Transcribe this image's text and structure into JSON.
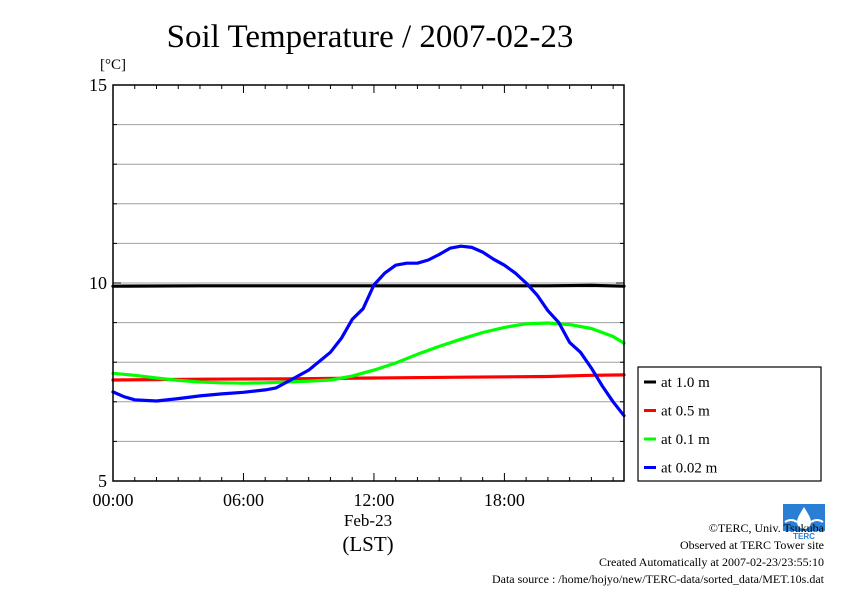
{
  "chart_data": {
    "type": "line",
    "title": "Soil Temperature / 2007-02-23",
    "ylabel": "[°C]",
    "xlabel": "(LST)",
    "x_date_label": "Feb-23",
    "ylim": [
      5,
      15
    ],
    "xlim": [
      0,
      23.5
    ],
    "y_ticks": [
      "5",
      "10",
      "15"
    ],
    "x_ticks": [
      {
        "value": 0,
        "label": "00:00"
      },
      {
        "value": 6,
        "label": "06:00"
      },
      {
        "value": 12,
        "label": "12:00"
      },
      {
        "value": 18,
        "label": "18:00"
      }
    ],
    "grid": true,
    "legend_position": "right",
    "series": [
      {
        "name": "at 1.0 m",
        "color": "#000000",
        "points": [
          [
            0,
            9.92
          ],
          [
            4,
            9.93
          ],
          [
            8,
            9.93
          ],
          [
            12,
            9.93
          ],
          [
            16,
            9.93
          ],
          [
            20,
            9.93
          ],
          [
            22,
            9.94
          ],
          [
            23.5,
            9.92
          ]
        ]
      },
      {
        "name": "at 0.5 m",
        "color": "#ff0000",
        "points": [
          [
            0,
            7.55
          ],
          [
            4,
            7.57
          ],
          [
            8,
            7.58
          ],
          [
            12,
            7.6
          ],
          [
            16,
            7.62
          ],
          [
            20,
            7.64
          ],
          [
            22,
            7.67
          ],
          [
            23.5,
            7.68
          ]
        ]
      },
      {
        "name": "at 0.1 m",
        "color": "#00ff00",
        "points": [
          [
            0,
            7.72
          ],
          [
            1,
            7.67
          ],
          [
            2,
            7.6
          ],
          [
            3,
            7.54
          ],
          [
            4,
            7.5
          ],
          [
            5,
            7.48
          ],
          [
            6,
            7.47
          ],
          [
            7,
            7.48
          ],
          [
            8,
            7.5
          ],
          [
            9,
            7.52
          ],
          [
            10,
            7.55
          ],
          [
            11,
            7.65
          ],
          [
            12,
            7.8
          ],
          [
            13,
            7.98
          ],
          [
            14,
            8.2
          ],
          [
            15,
            8.4
          ],
          [
            16,
            8.58
          ],
          [
            17,
            8.75
          ],
          [
            18,
            8.88
          ],
          [
            19,
            8.97
          ],
          [
            20,
            8.99
          ],
          [
            21,
            8.95
          ],
          [
            22,
            8.85
          ],
          [
            23,
            8.65
          ],
          [
            23.5,
            8.48
          ]
        ]
      },
      {
        "name": "at 0.02 m",
        "color": "#0000ff",
        "points": [
          [
            0,
            7.25
          ],
          [
            0.5,
            7.13
          ],
          [
            1,
            7.05
          ],
          [
            2,
            7.02
          ],
          [
            3,
            7.08
          ],
          [
            4,
            7.15
          ],
          [
            5,
            7.2
          ],
          [
            6,
            7.24
          ],
          [
            7,
            7.3
          ],
          [
            7.5,
            7.35
          ],
          [
            8,
            7.5
          ],
          [
            9,
            7.8
          ],
          [
            10,
            8.25
          ],
          [
            10.5,
            8.6
          ],
          [
            11,
            9.08
          ],
          [
            11.5,
            9.35
          ],
          [
            12,
            9.95
          ],
          [
            12.5,
            10.25
          ],
          [
            13,
            10.45
          ],
          [
            13.5,
            10.5
          ],
          [
            14,
            10.5
          ],
          [
            14.5,
            10.58
          ],
          [
            15,
            10.72
          ],
          [
            15.5,
            10.88
          ],
          [
            16,
            10.93
          ],
          [
            16.5,
            10.9
          ],
          [
            17,
            10.78
          ],
          [
            17.5,
            10.6
          ],
          [
            18,
            10.45
          ],
          [
            18.5,
            10.25
          ],
          [
            19,
            10.0
          ],
          [
            19.5,
            9.7
          ],
          [
            20,
            9.3
          ],
          [
            20.5,
            9.0
          ],
          [
            21,
            8.5
          ],
          [
            21.5,
            8.25
          ],
          [
            22,
            7.85
          ],
          [
            22.5,
            7.4
          ],
          [
            23,
            7.0
          ],
          [
            23.5,
            6.65
          ]
        ]
      }
    ]
  },
  "footer": {
    "copyright": "©TERC, Univ. Tsukuba",
    "observed": "Observed at TERC Tower site",
    "created": "Created Automatically at 2007-02-23/23:55:10",
    "source": "Data source : /home/hojyo/new/TERC-data/sorted_data/MET.10s.dat",
    "logo_text": "TERC"
  }
}
